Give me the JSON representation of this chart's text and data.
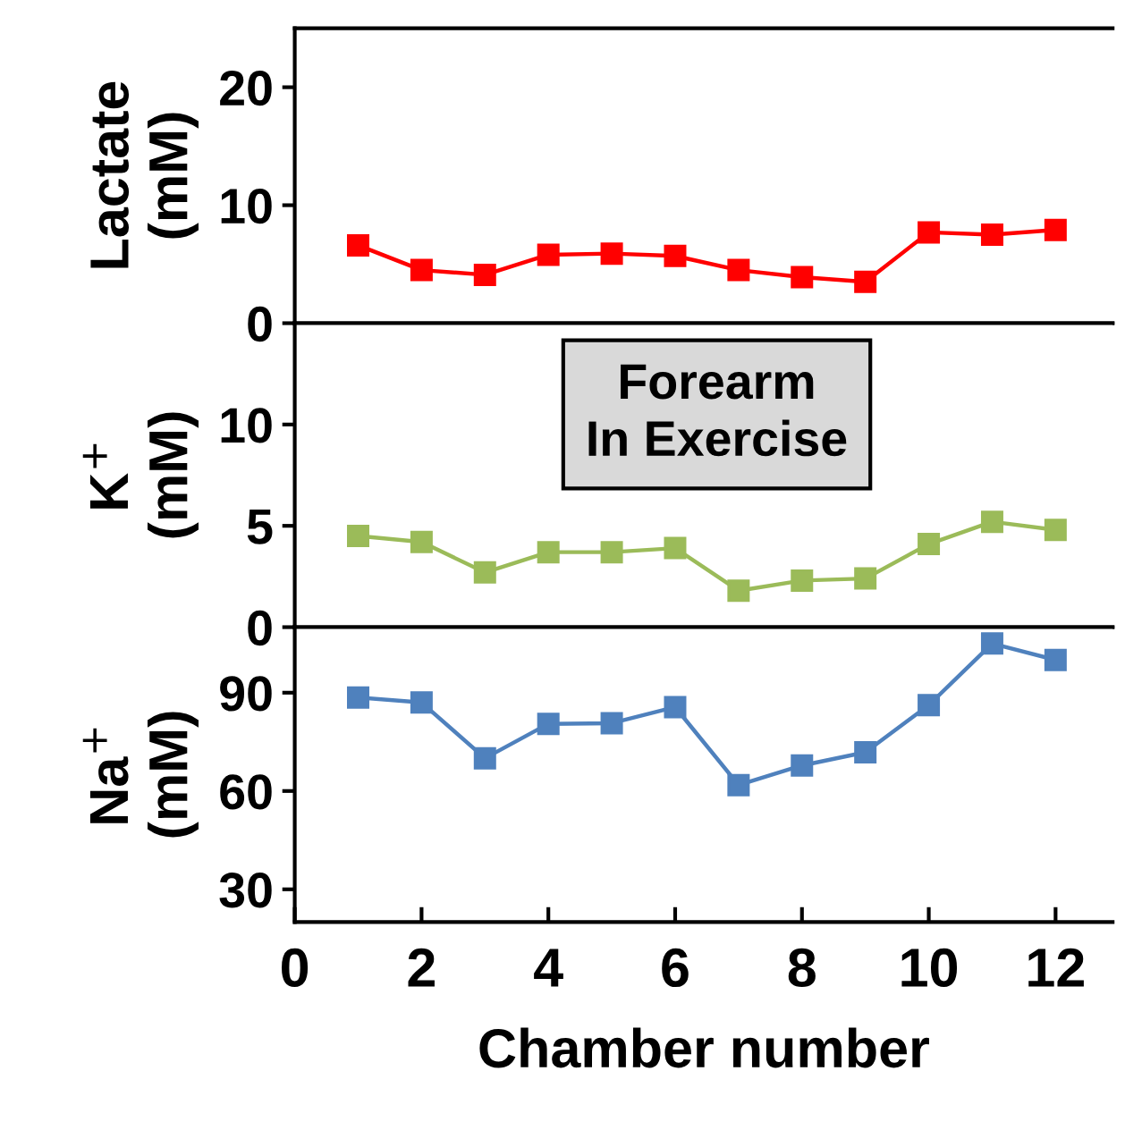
{
  "chart_data": [
    {
      "type": "line",
      "ylabel": "Lactate\n(mM)",
      "x": [
        1,
        2,
        3,
        4,
        5,
        6,
        7,
        8,
        9,
        10,
        11,
        12
      ],
      "marker": "square",
      "line_style": "solid",
      "grid": false,
      "tick_labels": "y",
      "series": [
        {
          "color": "#ff0000",
          "values": [
            6.6,
            4.5,
            4.1,
            5.8,
            5.9,
            5.7,
            4.5,
            3.9,
            3.5,
            7.7,
            7.5,
            7.9
          ]
        }
      ],
      "xlim": [
        0,
        12.9
      ],
      "ylim": [
        0,
        25
      ],
      "yticks": [
        0,
        10,
        20
      ]
    },
    {
      "type": "line",
      "ylabel": "K$^{+}$\n(mM)",
      "x": [
        1,
        2,
        3,
        4,
        5,
        6,
        7,
        8,
        9,
        10,
        11,
        12
      ],
      "marker": "square",
      "line_style": "solid",
      "grid": false,
      "tick_labels": "y",
      "series": [
        {
          "color": "#9bbb59",
          "values": [
            4.5,
            4.2,
            2.7,
            3.7,
            3.7,
            3.9,
            1.8,
            2.3,
            2.4,
            4.1,
            5.2,
            4.8
          ]
        }
      ],
      "annotations": [
        "Forearm\nIn Exercise"
      ],
      "xlim": [
        0,
        12.9
      ],
      "ylim": [
        0,
        15
      ],
      "yticks": [
        0,
        5,
        10
      ]
    },
    {
      "type": "line",
      "ylabel": "Na$^{+}$\n(mM)",
      "xlabel": "Chamber number",
      "x": [
        1,
        2,
        3,
        4,
        5,
        6,
        7,
        8,
        9,
        10,
        11,
        12
      ],
      "marker": "square",
      "line_style": "solid",
      "grid": false,
      "series": [
        {
          "color": "#4f81bd",
          "values": [
            88.5,
            87,
            70,
            80.5,
            80.7,
            85.6,
            61.8,
            67.8,
            71.8,
            86.2,
            105,
            100
          ]
        }
      ],
      "xlim": [
        0,
        12.9
      ],
      "xticks": [
        0,
        2,
        4,
        6,
        8,
        10,
        12
      ],
      "ylim": [
        20,
        110
      ],
      "yticks": [
        30,
        60,
        90
      ]
    }
  ]
}
